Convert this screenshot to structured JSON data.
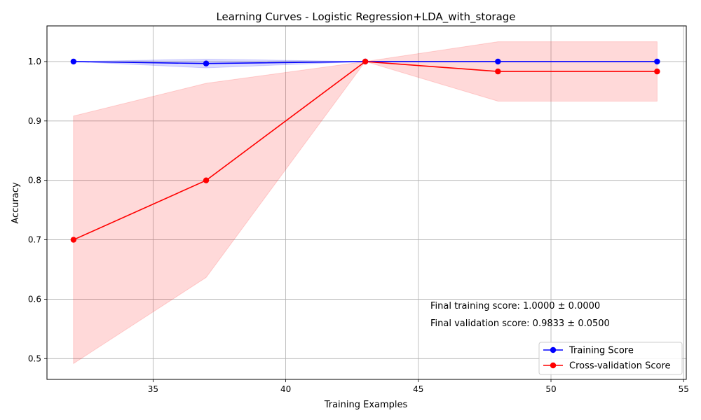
{
  "chart_data": {
    "type": "line",
    "title": "Learning Curves - Logistic Regression+LDA_with_storage",
    "xlabel": "Training Examples",
    "ylabel": "Accuracy",
    "xlim": [
      31.0,
      55.1
    ],
    "ylim": [
      0.465,
      1.06
    ],
    "xticks": [
      35,
      40,
      45,
      50,
      55
    ],
    "yticks": [
      0.5,
      0.6,
      0.7,
      0.8,
      0.9,
      1.0
    ],
    "grid": true,
    "legend_position": "lower-right",
    "x": [
      32,
      37,
      43,
      48,
      54
    ],
    "series": [
      {
        "name": "Training Score",
        "color": "#0000ff",
        "band_color": "#0000ff",
        "values": [
          1.0,
          0.9967,
          1.0,
          1.0,
          1.0
        ],
        "band_lower": [
          1.0,
          0.9893,
          1.0,
          1.0,
          1.0
        ],
        "band_upper": [
          1.0,
          1.0041,
          1.0,
          1.0,
          1.0
        ]
      },
      {
        "name": "Cross-validation Score",
        "color": "#ff0000",
        "band_color": "#ff0000",
        "values": [
          0.7,
          0.8,
          1.0,
          0.9833,
          0.9833
        ],
        "band_lower": [
          0.4917,
          0.6366,
          1.0,
          0.9333,
          0.9333
        ],
        "band_upper": [
          0.9083,
          0.9634,
          1.0,
          1.0333,
          1.0333
        ]
      }
    ],
    "annotations": [
      "Final training score: 1.0000 ± 0.0000",
      "Final validation score: 0.9833 ± 0.0500"
    ]
  }
}
